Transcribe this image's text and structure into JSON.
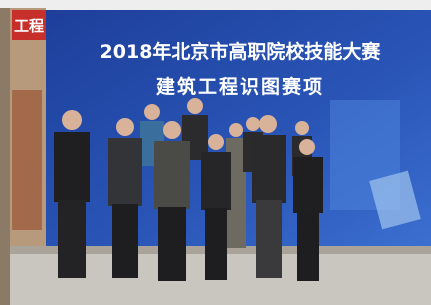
{
  "banner": {
    "title": "2018年北京市高职院校技能大赛",
    "subtitle": "建筑工程识图赛项"
  },
  "sign": {
    "text": "工程"
  }
}
